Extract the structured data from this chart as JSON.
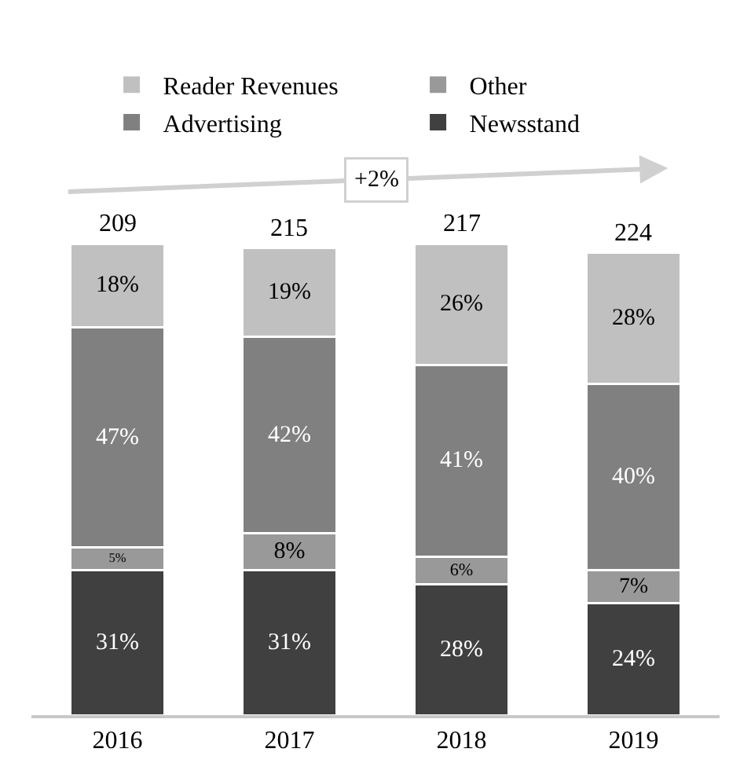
{
  "chart_data": {
    "type": "bar",
    "stacked": true,
    "categories": [
      "2016",
      "2017",
      "2018",
      "2019"
    ],
    "series": [
      {
        "name": "Newsstand",
        "color": "#404040",
        "values": [
          31,
          31,
          28,
          24
        ],
        "value_labels": [
          "31%",
          "31%",
          "28%",
          "24%"
        ]
      },
      {
        "name": "Other",
        "color": "#999999",
        "values": [
          5,
          8,
          6,
          7
        ],
        "value_labels": [
          "5%",
          "8%",
          "6%",
          "7%"
        ]
      },
      {
        "name": "Advertising",
        "color": "#808080",
        "values": [
          47,
          42,
          41,
          40
        ],
        "value_labels": [
          "47%",
          "42%",
          "41%",
          "40%"
        ]
      },
      {
        "name": "Reader Revenues",
        "color": "#c0c0c0",
        "values": [
          18,
          19,
          26,
          28
        ],
        "value_labels": [
          "18%",
          "19%",
          "26%",
          "28%"
        ]
      }
    ],
    "annotations": [
      {
        "text": "209",
        "x": "2016",
        "y": 101
      },
      {
        "text": "215",
        "x": "2017",
        "y": 100
      },
      {
        "text": "217",
        "x": "2018",
        "y": 101
      },
      {
        "text": "224",
        "x": "2019",
        "y": 99
      },
      "+2%"
    ],
    "tick_labels": "x",
    "legend": "top"
  }
}
